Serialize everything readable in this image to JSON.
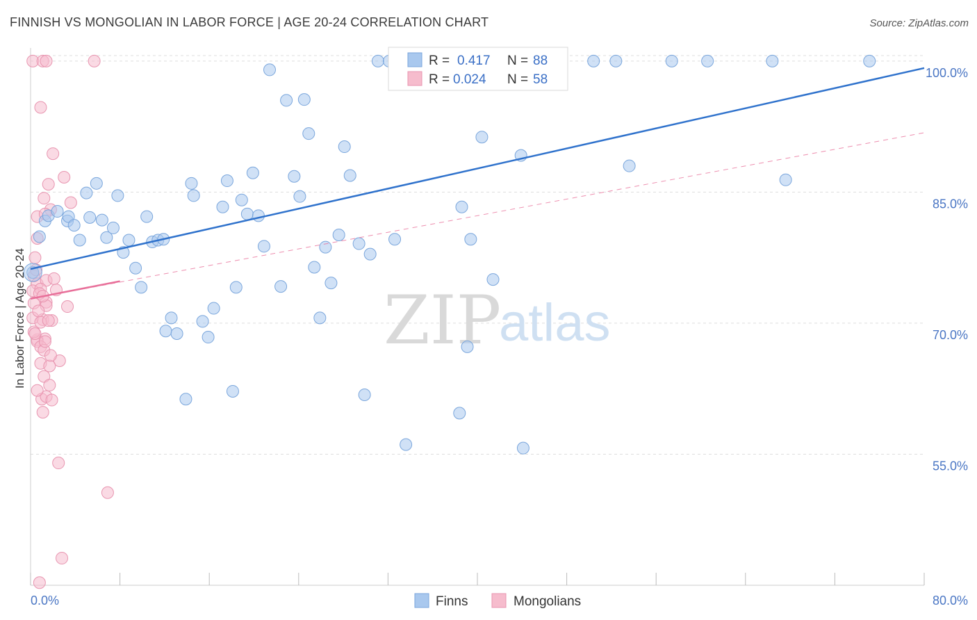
{
  "header": {
    "title": "FINNISH VS MONGOLIAN IN LABOR FORCE | AGE 20-24 CORRELATION CHART",
    "source": "Source: ZipAtlas.com"
  },
  "watermark": {
    "zip": "ZIP",
    "atlas": "atlas"
  },
  "colors": {
    "finns": "#a9c8ee",
    "finns_stroke": "#7aa6dc",
    "finns_line": "#2f72cc",
    "mongolians": "#f6bccd",
    "mongolians_stroke": "#e895b0",
    "mongolians_line": "#e8709a",
    "tick_label": "#4a76c4",
    "grid": "#dddddd"
  },
  "legend": {
    "rows": [
      {
        "r_label": "R =",
        "r_value": "0.417",
        "n_label": "N =",
        "n_value": "88"
      },
      {
        "r_label": "R =",
        "r_value": "0.024",
        "n_label": "N =",
        "n_value": "58"
      }
    ]
  },
  "bottom_legend": [
    "Finns",
    "Mongolians"
  ],
  "chart_data": {
    "type": "scatter",
    "title": "FINNISH VS MONGOLIAN IN LABOR FORCE | AGE 20-24 CORRELATION CHART",
    "xlabel": "",
    "ylabel": "In Labor Force | Age 20-24",
    "xlim": [
      0,
      80
    ],
    "ylim": [
      40,
      101.5
    ],
    "x_tick_labels": [
      "0.0%",
      "80.0%"
    ],
    "y_ticks": [
      55,
      70,
      85,
      100
    ],
    "y_tick_labels": [
      "55.0%",
      "70.0%",
      "85.0%",
      "100.0%"
    ],
    "grid": true,
    "legend_position": "top-center",
    "series": [
      {
        "name": "Finns",
        "r": 0.417,
        "n": 88,
        "trend": {
          "x": [
            0,
            80
          ],
          "y": [
            76.2,
            99.2
          ],
          "style": "solid"
        },
        "points": [
          [
            0.2,
            75.8
          ],
          [
            0.8,
            79.9
          ],
          [
            1.3,
            81.7
          ],
          [
            1.6,
            82.3
          ],
          [
            2.4,
            82.8
          ],
          [
            3.3,
            81.7
          ],
          [
            3.4,
            82.2
          ],
          [
            3.9,
            81.2
          ],
          [
            4.4,
            79.5
          ],
          [
            5.0,
            84.9
          ],
          [
            5.3,
            82.1
          ],
          [
            5.9,
            86.0
          ],
          [
            6.4,
            81.8
          ],
          [
            6.8,
            79.8
          ],
          [
            7.4,
            80.9
          ],
          [
            7.8,
            84.6
          ],
          [
            8.3,
            78.1
          ],
          [
            8.8,
            79.5
          ],
          [
            9.4,
            76.3
          ],
          [
            9.9,
            74.1
          ],
          [
            10.4,
            82.2
          ],
          [
            10.9,
            79.3
          ],
          [
            11.4,
            79.5
          ],
          [
            11.9,
            79.6
          ],
          [
            12.6,
            70.6
          ],
          [
            12.1,
            69.1
          ],
          [
            13.1,
            68.8
          ],
          [
            13.9,
            61.3
          ],
          [
            14.4,
            86.0
          ],
          [
            14.6,
            84.6
          ],
          [
            15.4,
            70.2
          ],
          [
            15.9,
            68.4
          ],
          [
            16.4,
            71.7
          ],
          [
            17.2,
            83.3
          ],
          [
            17.6,
            86.3
          ],
          [
            18.1,
            62.2
          ],
          [
            18.4,
            74.1
          ],
          [
            18.9,
            84.1
          ],
          [
            19.4,
            82.5
          ],
          [
            19.9,
            87.2
          ],
          [
            20.4,
            82.3
          ],
          [
            20.9,
            78.8
          ],
          [
            21.4,
            99.0
          ],
          [
            22.4,
            74.2
          ],
          [
            22.9,
            95.5
          ],
          [
            23.6,
            86.8
          ],
          [
            24.1,
            84.5
          ],
          [
            24.5,
            95.6
          ],
          [
            24.9,
            91.7
          ],
          [
            25.4,
            76.4
          ],
          [
            25.9,
            70.6
          ],
          [
            26.4,
            78.7
          ],
          [
            26.9,
            74.6
          ],
          [
            27.6,
            80.1
          ],
          [
            28.1,
            90.2
          ],
          [
            28.6,
            86.9
          ],
          [
            29.4,
            79.1
          ],
          [
            29.9,
            61.8
          ],
          [
            30.4,
            77.9
          ],
          [
            31.1,
            100.0
          ],
          [
            32.1,
            100.0
          ],
          [
            32.6,
            79.6
          ],
          [
            33.6,
            56.1
          ],
          [
            34.1,
            100.0
          ],
          [
            34.9,
            100.0
          ],
          [
            35.9,
            100.0
          ],
          [
            37.9,
            100.0
          ],
          [
            38.4,
            59.7
          ],
          [
            38.6,
            83.3
          ],
          [
            39.1,
            67.3
          ],
          [
            39.4,
            79.6
          ],
          [
            40.4,
            91.3
          ],
          [
            41.4,
            75.0
          ],
          [
            43.4,
            100.0
          ],
          [
            43.9,
            89.2
          ],
          [
            44.1,
            55.7
          ],
          [
            45.9,
            100.0
          ],
          [
            46.9,
            100.0
          ],
          [
            50.4,
            100.0
          ],
          [
            52.4,
            100.0
          ],
          [
            53.6,
            88.0
          ],
          [
            57.4,
            100.0
          ],
          [
            60.6,
            100.0
          ],
          [
            66.4,
            100.0
          ],
          [
            67.6,
            86.4
          ],
          [
            75.1,
            100.0
          ],
          [
            36.8,
            100.0
          ],
          [
            44.8,
            100.0
          ]
        ]
      },
      {
        "name": "Mongolians",
        "r": 0.024,
        "n": 58,
        "trend": {
          "x": [
            0,
            8
          ],
          "y": [
            72.8,
            74.8
          ],
          "style": "solid"
        },
        "trend_extended": {
          "x": [
            0,
            80
          ],
          "y": [
            72.8,
            91.8
          ],
          "style": "dashed"
        },
        "points": [
          [
            0.2,
            100.0
          ],
          [
            1.1,
            100.0
          ],
          [
            1.4,
            100.0
          ],
          [
            5.7,
            100.0
          ],
          [
            0.9,
            94.7
          ],
          [
            2.0,
            89.4
          ],
          [
            1.6,
            85.9
          ],
          [
            3.0,
            86.7
          ],
          [
            1.2,
            84.3
          ],
          [
            1.8,
            83.0
          ],
          [
            3.6,
            83.8
          ],
          [
            0.6,
            82.2
          ],
          [
            1.3,
            82.5
          ],
          [
            0.6,
            79.7
          ],
          [
            0.4,
            77.5
          ],
          [
            0.3,
            75.4
          ],
          [
            0.6,
            74.5
          ],
          [
            1.4,
            74.9
          ],
          [
            0.2,
            73.7
          ],
          [
            0.9,
            73.9
          ],
          [
            2.3,
            73.8
          ],
          [
            0.3,
            72.3
          ],
          [
            1.4,
            72.4
          ],
          [
            1.4,
            72.0
          ],
          [
            3.3,
            71.9
          ],
          [
            0.2,
            70.6
          ],
          [
            1.1,
            70.4
          ],
          [
            1.9,
            70.3
          ],
          [
            0.9,
            70.1
          ],
          [
            0.6,
            68.1
          ],
          [
            1.3,
            68.2
          ],
          [
            0.6,
            67.9
          ],
          [
            0.9,
            67.3
          ],
          [
            1.2,
            66.9
          ],
          [
            2.6,
            65.7
          ],
          [
            0.9,
            65.4
          ],
          [
            1.7,
            65.1
          ],
          [
            1.2,
            63.9
          ],
          [
            1.7,
            62.9
          ],
          [
            1.0,
            61.3
          ],
          [
            1.4,
            61.6
          ],
          [
            1.9,
            61.2
          ],
          [
            1.1,
            59.8
          ],
          [
            2.5,
            54.0
          ],
          [
            6.9,
            50.6
          ],
          [
            2.8,
            43.1
          ],
          [
            0.8,
            40.3
          ],
          [
            0.5,
            76.1
          ],
          [
            0.8,
            73.4
          ],
          [
            1.6,
            70.3
          ],
          [
            0.3,
            69.0
          ],
          [
            1.3,
            67.9
          ],
          [
            2.1,
            75.1
          ],
          [
            0.7,
            71.4
          ],
          [
            1.1,
            73.1
          ],
          [
            0.4,
            68.8
          ],
          [
            1.8,
            66.3
          ],
          [
            0.6,
            62.3
          ]
        ]
      }
    ]
  }
}
